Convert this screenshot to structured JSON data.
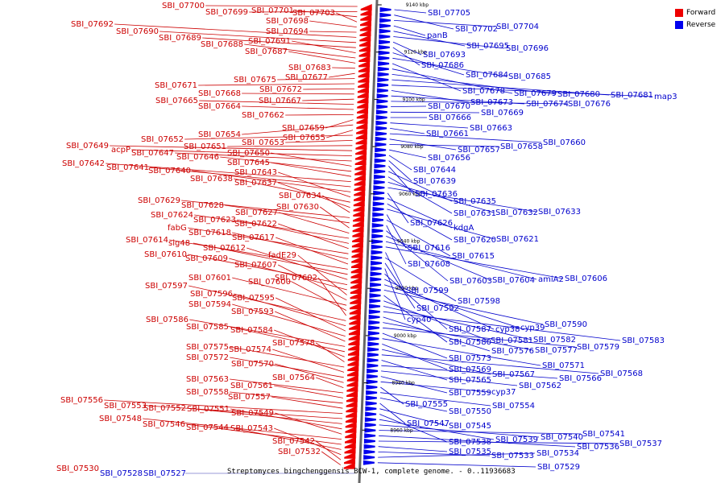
{
  "legend": {
    "forward": {
      "label": "Forward",
      "color": "#ee0000"
    },
    "reverse": {
      "label": "Reverse",
      "color": "#0000ee"
    }
  },
  "caption": {
    "start_name": "SBI_07530",
    "names": [
      "SBI_07528",
      "SBI_07527"
    ],
    "text": "Streptomyces bingchenggensis BCW-1, complete genome. - 0..11936683"
  },
  "ruler_labels": [
    {
      "kbp": 9140,
      "text": "9140 kbp"
    },
    {
      "kbp": 9120,
      "text": "9120 kbp"
    },
    {
      "kbp": 9100,
      "text": "9100 kbp"
    },
    {
      "kbp": 9080,
      "text": "9080 kbp"
    },
    {
      "kbp": 9060,
      "text": "9060 kbp"
    },
    {
      "kbp": 9040,
      "text": "9040 kbp"
    },
    {
      "kbp": 9020,
      "text": "9020 kbp"
    },
    {
      "kbp": 9000,
      "text": "9000 kbp"
    },
    {
      "kbp": 8980,
      "text": "8980 kbp"
    },
    {
      "kbp": 8960,
      "text": "8960 kbp"
    }
  ],
  "forward_genes": [
    "SBI_07700",
    "SBI_07699",
    "SBI_07701",
    "SBI_07703",
    "SBI_07698",
    "SBI_07694",
    "SBI_07692",
    "SBI_07690",
    "SBI_07689",
    "SBI_07691",
    "SBI_07688",
    "SBI_07687",
    "SBI_07683",
    "SBI_07677",
    "SBI_07675",
    "SBI_07671",
    "SBI_07672",
    "SBI_07668",
    "SBI_07667",
    "SBI_07665",
    "SBI_07664",
    "SBI_07662",
    "SBI_07659",
    "SBI_07654",
    "SBI_07655",
    "SBI_07652",
    "SBI_07653",
    "SBI_07651",
    "SBI_07649",
    "acpP",
    "SBI_07647",
    "SBI_07650",
    "SBI_07646",
    "SBI_07645",
    "SBI_07642",
    "SBI_07641",
    "SBI_07640",
    "SBI_07643",
    "SBI_07638",
    "SBI_07637",
    "SBI_07634",
    "SBI_07629",
    "SBI_07628",
    "SBI_07630",
    "SBI_07627",
    "SBI_07624",
    "SBI_07623",
    "SBI_07622",
    "fabG",
    "SBI_07618",
    "SBI_07617",
    "SBI_07614",
    "sig48",
    "SBI_07612",
    "SBI_07610",
    "SBI_07609",
    "fadE29",
    "SBI_07607",
    "SBI_07601",
    "SBI_07600",
    "SBI_07602",
    "SBI_07597",
    "SBI_07596",
    "SBI_07595",
    "SBI_07594",
    "SBI_07593",
    "SBI_07586",
    "SBI_07585",
    "SBI_07584",
    "SBI_07578",
    "SBI_07575",
    "SBI_07574",
    "SBI_07572",
    "SBI_07570",
    "SBI_07564",
    "SBI_07563",
    "SBI_07561",
    "SBI_07558",
    "SBI_07557",
    "SBI_07556",
    "SBI_07553",
    "SBI_07552",
    "SBI_07551",
    "SBI_07549",
    "SBI_07548",
    "SBI_07546",
    "SBI_07544",
    "SBI_07543",
    "SBI_07542",
    "SBI_07532"
  ],
  "reverse_genes": [
    "SBI_07705",
    "SBI_07702",
    "SBI_07704",
    "panB",
    "SBI_07695",
    "SBI_07696",
    "SBI_07693",
    "SBI_07686",
    "SBI_07684",
    "SBI_07685",
    "SBI_07678",
    "SBI_07679",
    "SBI_07680",
    "SBI_07681",
    "map3",
    "SBI_07673",
    "SBI_07674",
    "SBI_07676",
    "SBI_07670",
    "SBI_07669",
    "SBI_07666",
    "SBI_07663",
    "SBI_07661",
    "SBI_07660",
    "SBI_07657",
    "SBI_07658",
    "SBI_07656",
    "SBI_07644",
    "SBI_07639",
    "SBI_07636",
    "SBI_07635",
    "SBI_07631",
    "SBI_07632",
    "SBI_07633",
    "SBI_07626",
    "kdgA",
    "SBI_07620",
    "SBI_07621",
    "SBI_07616",
    "SBI_07615",
    "SBI_07608",
    "SBI_07603",
    "SBI_07604",
    "amiA2",
    "SBI_07606",
    "SBI_07599",
    "SBI_07598",
    "SBI_07592",
    "cyp40",
    "SBI_07587",
    "cyp38",
    "cyp39",
    "SBI_07590",
    "SBI_07580",
    "SBI_07581",
    "SBI_07582",
    "SBI_07583",
    "SBI_07576",
    "SBI_07577",
    "SBI_07579",
    "SBI_07573",
    "SBI_07571",
    "SBI_07569",
    "SBI_07567",
    "SBI_07568",
    "SBI_07565",
    "SBI_07566",
    "SBI_07562",
    "SBI_07559",
    "cyp37",
    "SBI_07555",
    "SBI_07554",
    "SBI_07550",
    "SBI_07547",
    "SBI_07545",
    "SBI_07538",
    "SBI_07539",
    "SBI_07540",
    "SBI_07541",
    "SBI_07536",
    "SBI_07537",
    "SBI_07535",
    "SBI_07533",
    "SBI_07534",
    "SBI_07529"
  ]
}
